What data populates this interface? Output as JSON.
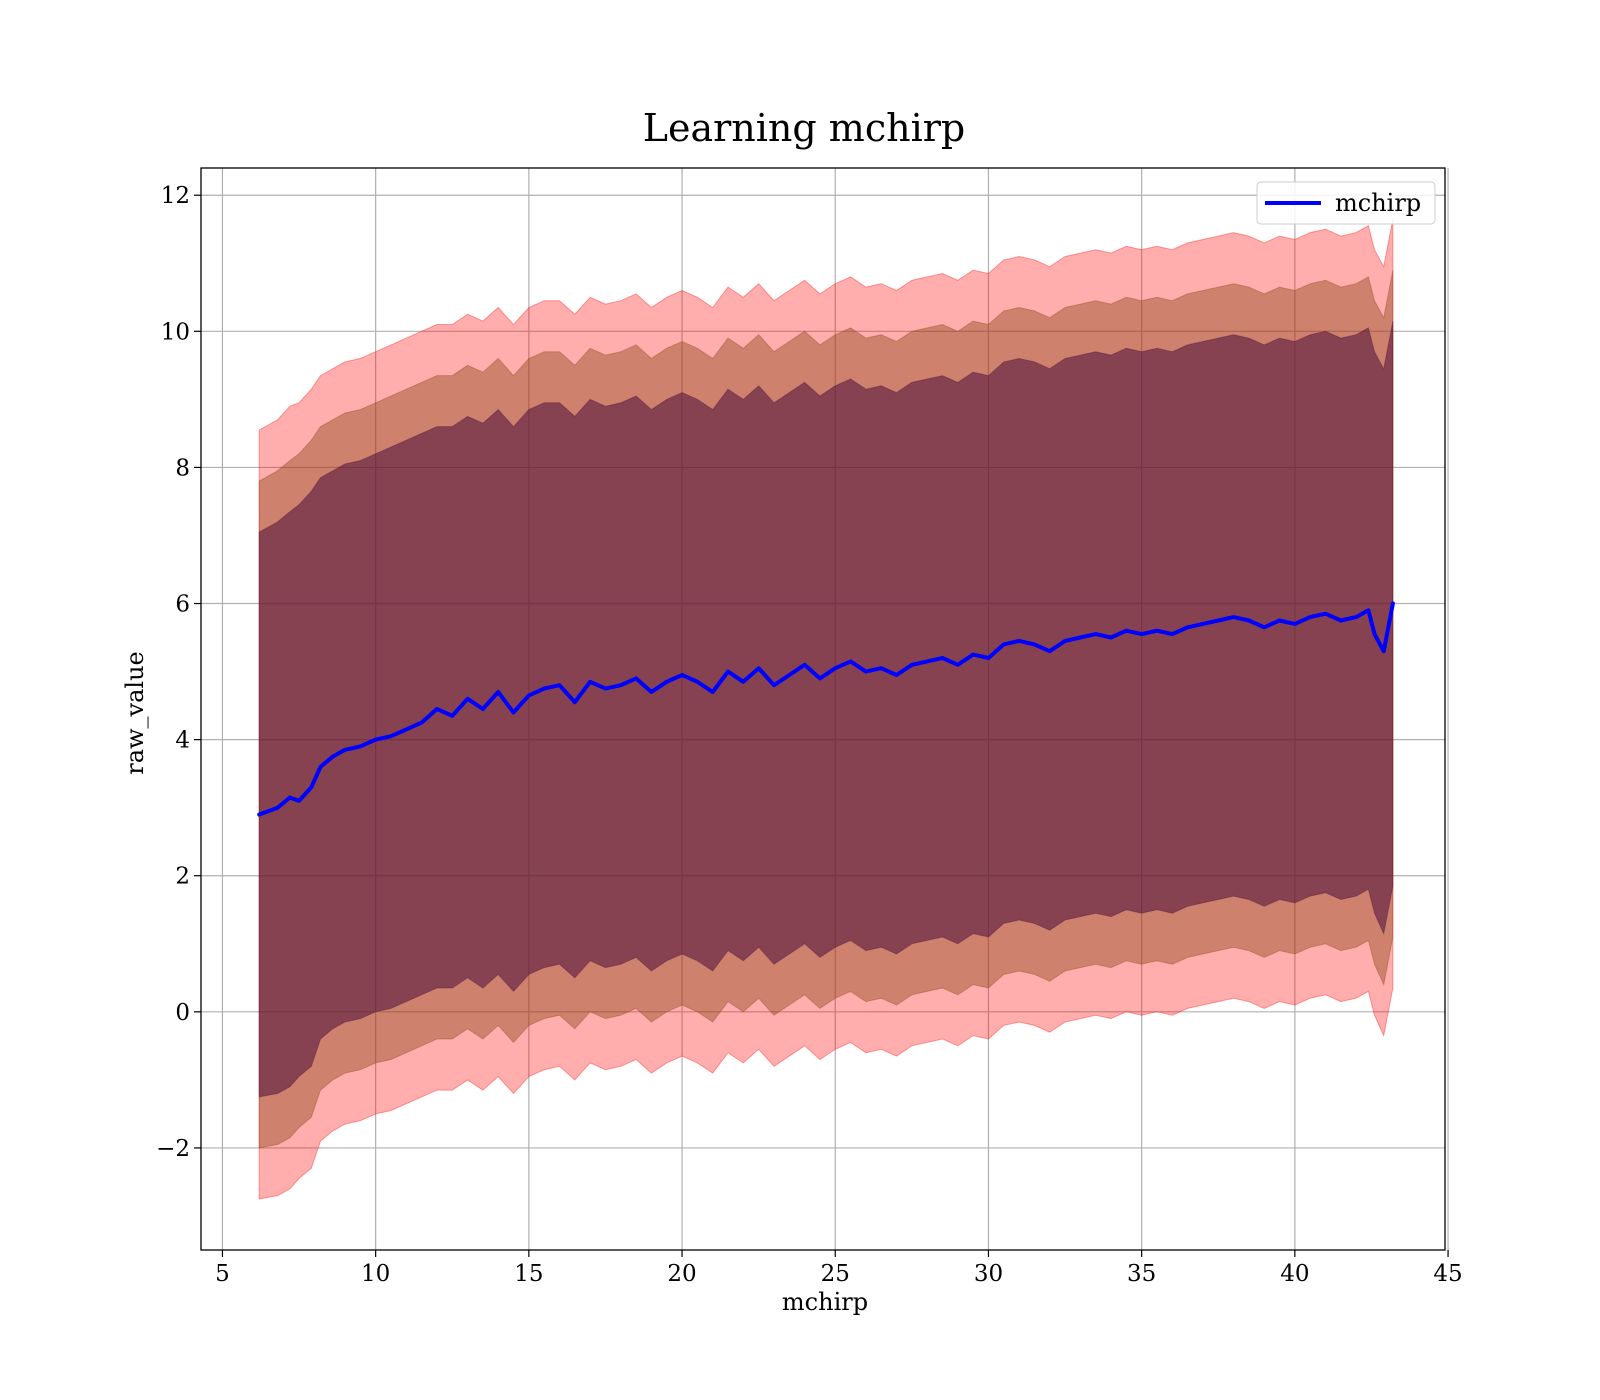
{
  "chart_data": {
    "type": "line",
    "title": "Learning mchirp",
    "xlabel": "mchirp",
    "ylabel": "raw_value",
    "xlim": [
      4.3,
      44.9
    ],
    "ylim": [
      -3.5,
      12.4
    ],
    "xticks": [
      5,
      10,
      15,
      20,
      25,
      30,
      35,
      40,
      45
    ],
    "yticks": [
      -2,
      0,
      2,
      4,
      6,
      8,
      10,
      12
    ],
    "ytick_labels": [
      "−2",
      "0",
      "2",
      "4",
      "6",
      "8",
      "10",
      "12"
    ],
    "grid": true,
    "legend": {
      "position": "top-right",
      "entries": [
        "mchirp"
      ]
    },
    "colors": {
      "line": "#0000ff",
      "band_outer": "#ff0000",
      "band_middle": "#8b4513",
      "band_inner": "#4b0f3c"
    },
    "series": [
      {
        "name": "mchirp",
        "style": "line",
        "x": [
          6.2,
          6.8,
          7.2,
          7.5,
          7.9,
          8.2,
          8.6,
          9.0,
          9.5,
          10.0,
          10.5,
          11.0,
          11.5,
          12.0,
          12.5,
          13.0,
          13.5,
          14.0,
          14.5,
          15.0,
          15.5,
          16.0,
          16.5,
          17.0,
          17.5,
          18.0,
          18.5,
          19.0,
          19.5,
          20.0,
          20.5,
          21.0,
          21.5,
          22.0,
          22.5,
          23.0,
          23.5,
          24.0,
          24.5,
          25.0,
          25.5,
          26.0,
          26.5,
          27.0,
          27.5,
          28.0,
          28.5,
          29.0,
          29.5,
          30.0,
          30.5,
          31.0,
          31.5,
          32.0,
          32.5,
          33.0,
          33.5,
          34.0,
          34.5,
          35.0,
          35.5,
          36.0,
          36.5,
          37.0,
          37.5,
          38.0,
          38.5,
          39.0,
          39.5,
          40.0,
          40.5,
          41.0,
          41.5,
          42.0,
          42.4,
          42.6,
          42.9,
          43.2
        ],
        "y": [
          2.9,
          3.0,
          3.15,
          3.1,
          3.3,
          3.6,
          3.75,
          3.85,
          3.9,
          4.0,
          4.05,
          4.15,
          4.25,
          4.45,
          4.35,
          4.6,
          4.45,
          4.7,
          4.4,
          4.65,
          4.75,
          4.8,
          4.55,
          4.85,
          4.75,
          4.8,
          4.9,
          4.7,
          4.85,
          4.95,
          4.85,
          4.7,
          5.0,
          4.85,
          5.05,
          4.8,
          4.95,
          5.1,
          4.9,
          5.05,
          5.15,
          5.0,
          5.05,
          4.95,
          5.1,
          5.15,
          5.2,
          5.1,
          5.25,
          5.2,
          5.4,
          5.45,
          5.4,
          5.3,
          5.45,
          5.5,
          5.55,
          5.5,
          5.6,
          5.55,
          5.6,
          5.55,
          5.65,
          5.7,
          5.75,
          5.8,
          5.75,
          5.65,
          5.75,
          5.7,
          5.8,
          5.85,
          5.75,
          5.8,
          5.9,
          5.55,
          5.3,
          6.0
        ]
      },
      {
        "name": "",
        "style": "band",
        "band": "outer",
        "upper": [
          8.55,
          8.7,
          8.9,
          8.95,
          9.15,
          9.35,
          9.45,
          9.55,
          9.6,
          9.7,
          9.8,
          9.9,
          10.0,
          10.1,
          10.1,
          10.25,
          10.15,
          10.35,
          10.1,
          10.35,
          10.45,
          10.45,
          10.25,
          10.5,
          10.4,
          10.45,
          10.55,
          10.35,
          10.5,
          10.6,
          10.5,
          10.35,
          10.65,
          10.5,
          10.7,
          10.45,
          10.6,
          10.75,
          10.55,
          10.7,
          10.8,
          10.65,
          10.7,
          10.6,
          10.75,
          10.8,
          10.85,
          10.75,
          10.9,
          10.85,
          11.05,
          11.1,
          11.05,
          10.95,
          11.1,
          11.15,
          11.2,
          11.15,
          11.25,
          11.2,
          11.25,
          11.2,
          11.3,
          11.35,
          11.4,
          11.45,
          11.4,
          11.3,
          11.4,
          11.35,
          11.45,
          11.5,
          11.4,
          11.45,
          11.55,
          11.2,
          10.95,
          11.65
        ],
        "lower": [
          -2.75,
          -2.7,
          -2.6,
          -2.45,
          -2.3,
          -1.9,
          -1.75,
          -1.65,
          -1.6,
          -1.5,
          -1.45,
          -1.35,
          -1.25,
          -1.15,
          -1.15,
          -1.0,
          -1.15,
          -0.95,
          -1.2,
          -0.95,
          -0.85,
          -0.8,
          -1.0,
          -0.75,
          -0.85,
          -0.8,
          -0.7,
          -0.9,
          -0.75,
          -0.65,
          -0.75,
          -0.9,
          -0.6,
          -0.75,
          -0.55,
          -0.8,
          -0.65,
          -0.5,
          -0.7,
          -0.55,
          -0.45,
          -0.6,
          -0.55,
          -0.65,
          -0.5,
          -0.45,
          -0.4,
          -0.5,
          -0.35,
          -0.4,
          -0.2,
          -0.15,
          -0.2,
          -0.3,
          -0.15,
          -0.1,
          -0.05,
          -0.1,
          0.0,
          -0.05,
          0.0,
          -0.05,
          0.05,
          0.1,
          0.15,
          0.2,
          0.15,
          0.05,
          0.15,
          0.1,
          0.2,
          0.25,
          0.15,
          0.2,
          0.3,
          -0.05,
          -0.35,
          0.35
        ]
      },
      {
        "name": "",
        "style": "band",
        "band": "middle",
        "upper": [
          7.8,
          7.95,
          8.1,
          8.2,
          8.4,
          8.6,
          8.7,
          8.8,
          8.85,
          8.95,
          9.05,
          9.15,
          9.25,
          9.35,
          9.35,
          9.5,
          9.4,
          9.6,
          9.35,
          9.6,
          9.7,
          9.7,
          9.5,
          9.75,
          9.65,
          9.7,
          9.8,
          9.6,
          9.75,
          9.85,
          9.75,
          9.6,
          9.9,
          9.75,
          9.95,
          9.7,
          9.85,
          10.0,
          9.8,
          9.95,
          10.05,
          9.9,
          9.95,
          9.85,
          10.0,
          10.05,
          10.1,
          10.0,
          10.15,
          10.1,
          10.3,
          10.35,
          10.3,
          10.2,
          10.35,
          10.4,
          10.45,
          10.4,
          10.5,
          10.45,
          10.5,
          10.45,
          10.55,
          10.6,
          10.65,
          10.7,
          10.65,
          10.55,
          10.65,
          10.6,
          10.7,
          10.75,
          10.65,
          10.7,
          10.8,
          10.45,
          10.2,
          10.9
        ],
        "lower": [
          -2.0,
          -1.95,
          -1.85,
          -1.7,
          -1.55,
          -1.15,
          -1.0,
          -0.9,
          -0.85,
          -0.75,
          -0.7,
          -0.6,
          -0.5,
          -0.4,
          -0.4,
          -0.25,
          -0.4,
          -0.2,
          -0.45,
          -0.2,
          -0.1,
          -0.05,
          -0.25,
          0.0,
          -0.1,
          -0.05,
          0.05,
          -0.15,
          0.0,
          0.1,
          0.0,
          -0.15,
          0.15,
          0.0,
          0.2,
          -0.05,
          0.1,
          0.25,
          0.05,
          0.2,
          0.3,
          0.15,
          0.2,
          0.1,
          0.25,
          0.3,
          0.35,
          0.25,
          0.4,
          0.35,
          0.55,
          0.6,
          0.55,
          0.45,
          0.6,
          0.65,
          0.7,
          0.65,
          0.75,
          0.7,
          0.75,
          0.7,
          0.8,
          0.85,
          0.9,
          0.95,
          0.9,
          0.8,
          0.9,
          0.85,
          0.95,
          1.0,
          0.9,
          0.95,
          1.05,
          0.7,
          0.4,
          1.1
        ]
      },
      {
        "name": "",
        "style": "band",
        "band": "inner",
        "upper": [
          7.05,
          7.2,
          7.35,
          7.45,
          7.65,
          7.85,
          7.95,
          8.05,
          8.1,
          8.2,
          8.3,
          8.4,
          8.5,
          8.6,
          8.6,
          8.75,
          8.65,
          8.85,
          8.6,
          8.85,
          8.95,
          8.95,
          8.75,
          9.0,
          8.9,
          8.95,
          9.05,
          8.85,
          9.0,
          9.1,
          9.0,
          8.85,
          9.15,
          9.0,
          9.2,
          8.95,
          9.1,
          9.25,
          9.05,
          9.2,
          9.3,
          9.15,
          9.2,
          9.1,
          9.25,
          9.3,
          9.35,
          9.25,
          9.4,
          9.35,
          9.55,
          9.6,
          9.55,
          9.45,
          9.6,
          9.65,
          9.7,
          9.65,
          9.75,
          9.7,
          9.75,
          9.7,
          9.8,
          9.85,
          9.9,
          9.95,
          9.9,
          9.8,
          9.9,
          9.85,
          9.95,
          10.0,
          9.9,
          9.95,
          10.05,
          9.7,
          9.45,
          10.15
        ],
        "lower": [
          -1.25,
          -1.2,
          -1.1,
          -0.95,
          -0.8,
          -0.4,
          -0.25,
          -0.15,
          -0.1,
          0.0,
          0.05,
          0.15,
          0.25,
          0.35,
          0.35,
          0.5,
          0.35,
          0.55,
          0.3,
          0.55,
          0.65,
          0.7,
          0.5,
          0.75,
          0.65,
          0.7,
          0.8,
          0.6,
          0.75,
          0.85,
          0.75,
          0.6,
          0.9,
          0.75,
          0.95,
          0.7,
          0.85,
          1.0,
          0.8,
          0.95,
          1.05,
          0.9,
          0.95,
          0.85,
          1.0,
          1.05,
          1.1,
          1.0,
          1.15,
          1.1,
          1.3,
          1.35,
          1.3,
          1.2,
          1.35,
          1.4,
          1.45,
          1.4,
          1.5,
          1.45,
          1.5,
          1.45,
          1.55,
          1.6,
          1.65,
          1.7,
          1.65,
          1.55,
          1.65,
          1.6,
          1.7,
          1.75,
          1.65,
          1.7,
          1.8,
          1.45,
          1.15,
          1.85
        ]
      }
    ]
  }
}
